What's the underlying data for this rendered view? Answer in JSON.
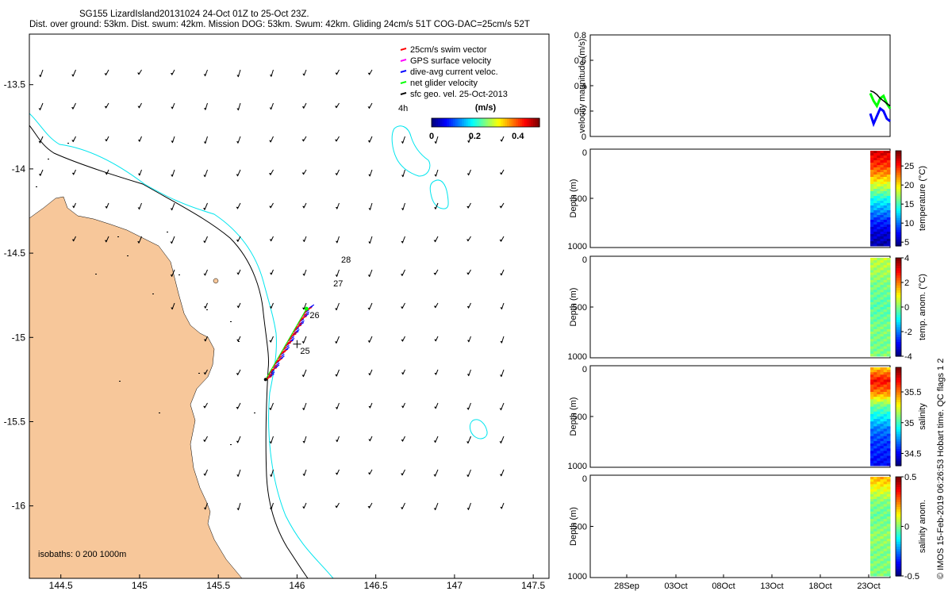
{
  "header": {
    "title": "SG155 LizardIsland20131024 24-Oct 01Z to 25-Oct 23Z.",
    "subtitle": "Dist. over ground: 53km. Dist. swum: 42km. Mission DOG: 53km. Swum: 42km. Gliding 24cm/s 51T COG-DAC=25cm/s 52T"
  },
  "colors": {
    "land": "#f7c79a",
    "isobath_200": "#000000",
    "isobath_1000": "#00e5ee",
    "swim_vector": "#ff0000",
    "gps_velocity": "#ff00ff",
    "dive_avg_current": "#0000ff",
    "net_glider_velocity": "#00ff00",
    "geo_velocity": "#000000"
  },
  "chart_data": [
    {
      "type": "map",
      "name": "track-map",
      "xlim": [
        144.3,
        147.6
      ],
      "ylim": [
        -16.43,
        -13.2
      ],
      "x_ticks": [
        "144.5",
        "145",
        "145.5",
        "146",
        "146.5",
        "147",
        "147.5"
      ],
      "x_tick_values": [
        144.5,
        145,
        145.5,
        146,
        146.5,
        147,
        147.5
      ],
      "y_ticks": [
        "-13.5",
        "-14",
        "-14.5",
        "-15",
        "-15.5",
        "-16"
      ],
      "y_tick_values": [
        -13.5,
        -14,
        -14.5,
        -15,
        -15.5,
        -16
      ],
      "legend": [
        {
          "label": "25cm/s swim vector",
          "color": "#ff0000"
        },
        {
          "label": "GPS surface velocity",
          "color": "#ff00ff"
        },
        {
          "label": "dive-avg current veloc.",
          "color": "#0000ff"
        },
        {
          "label": "net glider velocity",
          "color": "#00ff00"
        },
        {
          "label": "sfc geo. vel. 25-Oct-2013",
          "color": "#000000"
        }
      ],
      "legend_placement": "top-right",
      "colorbar": {
        "title": "(m/s)",
        "ticks": [
          "0",
          "0.2",
          "0.4"
        ],
        "tick_values": [
          0,
          0.2,
          0.4
        ],
        "range": [
          0,
          0.5
        ]
      },
      "isobath_note": "isobaths: 0   200  1000m",
      "hour_label": "4h",
      "track": {
        "start": [
          145.8,
          -15.25
        ],
        "end": [
          146.06,
          -14.83
        ]
      },
      "day_labels": [
        {
          "text": "28",
          "lon": 146.26,
          "lat": -14.5
        },
        {
          "text": "27",
          "lon": 146.21,
          "lat": -14.64
        },
        {
          "text": "26",
          "lon": 146.06,
          "lat": -14.83
        },
        {
          "text": "25",
          "lon": 146.0,
          "lat": -15.04
        }
      ],
      "current_vector_direction": "south-south-west"
    },
    {
      "type": "line",
      "name": "velocity-magnitude",
      "ylabel": "velocity magnitude (m/s)",
      "ylim": [
        0,
        0.8
      ],
      "y_ticks": [
        "0",
        "0.2",
        "0.4",
        "0.6",
        "0.8"
      ],
      "y_tick_values": [
        0,
        0.2,
        0.4,
        0.6,
        0.8
      ],
      "series": [
        {
          "color": "#00ff00",
          "values": [
            0.34,
            0.28,
            0.24,
            0.3,
            0.32,
            0.26,
            0.22
          ]
        },
        {
          "color": "#0000ff",
          "values": [
            0.18,
            0.1,
            0.16,
            0.22,
            0.2,
            0.14,
            0.12
          ]
        },
        {
          "color": "#000000",
          "values": [
            0.36,
            0.35,
            0.33,
            0.3,
            0.28,
            0.26,
            0.24
          ]
        }
      ]
    },
    {
      "type": "heatmap",
      "name": "temperature-section",
      "ylabel": "Depth (m)",
      "colorbar_label": "temperature (°C)",
      "y_ticks": [
        "0",
        "500",
        "1000"
      ],
      "y_tick_values": [
        0,
        500,
        1000
      ],
      "cb_ticks": [
        "5",
        "10",
        "15",
        "20",
        "25"
      ],
      "cb_tick_values": [
        5,
        10,
        15,
        20,
        25
      ],
      "cb_range": [
        4,
        29
      ],
      "depth_values": [
        27,
        25,
        22,
        18,
        14,
        11,
        8,
        6,
        5
      ],
      "cmap": "jet"
    },
    {
      "type": "heatmap",
      "name": "temperature-anomaly-section",
      "ylabel": "Depth (m)",
      "colorbar_label": "temp. anom. (°C)",
      "y_ticks": [
        "0",
        "500",
        "1000"
      ],
      "y_tick_values": [
        0,
        500,
        1000
      ],
      "cb_ticks": [
        "-4",
        "-2",
        "0",
        "2",
        "4"
      ],
      "cb_tick_values": [
        -4,
        -2,
        0,
        2,
        4
      ],
      "cb_range": [
        -4,
        4
      ],
      "depth_values": [
        0.5,
        0.3,
        0.0,
        -0.2,
        -0.3,
        -0.2,
        0.0,
        -0.1,
        0.0
      ],
      "cmap": "jet"
    },
    {
      "type": "heatmap",
      "name": "salinity-section",
      "ylabel": "Depth (m)",
      "colorbar_label": "salinity",
      "y_ticks": [
        "0",
        "500",
        "1000"
      ],
      "y_tick_values": [
        0,
        500,
        1000
      ],
      "cb_ticks": [
        "34.5",
        "35",
        "35.5"
      ],
      "cb_tick_values": [
        34.5,
        35,
        35.5
      ],
      "cb_range": [
        34.3,
        35.9
      ],
      "depth_values": [
        35.4,
        35.7,
        35.5,
        35.1,
        34.9,
        34.7,
        34.6,
        34.55,
        34.5
      ],
      "cmap": "jet"
    },
    {
      "type": "heatmap",
      "name": "salinity-anomaly-section",
      "ylabel": "Depth (m)",
      "colorbar_label": "salinity anom.",
      "y_ticks": [
        "0",
        "500",
        "1000"
      ],
      "y_tick_values": [
        0,
        500,
        1000
      ],
      "cb_ticks": [
        "-0.5",
        "0",
        "0.5"
      ],
      "cb_tick_values": [
        -0.5,
        0,
        0.5
      ],
      "cb_range": [
        -0.5,
        0.5
      ],
      "depth_values": [
        0.2,
        0.1,
        0.0,
        -0.02,
        0.0,
        0.02,
        0.0,
        0.0,
        0.0
      ],
      "x_ticks": [
        "28Sep",
        "03Oct",
        "08Oct",
        "13Oct",
        "18Oct",
        "23Oct"
      ],
      "cmap": "jet"
    }
  ],
  "side_note": "© IMOS 15-Feb-2019 06:26:53 Hobart time. QC flags 1  2"
}
